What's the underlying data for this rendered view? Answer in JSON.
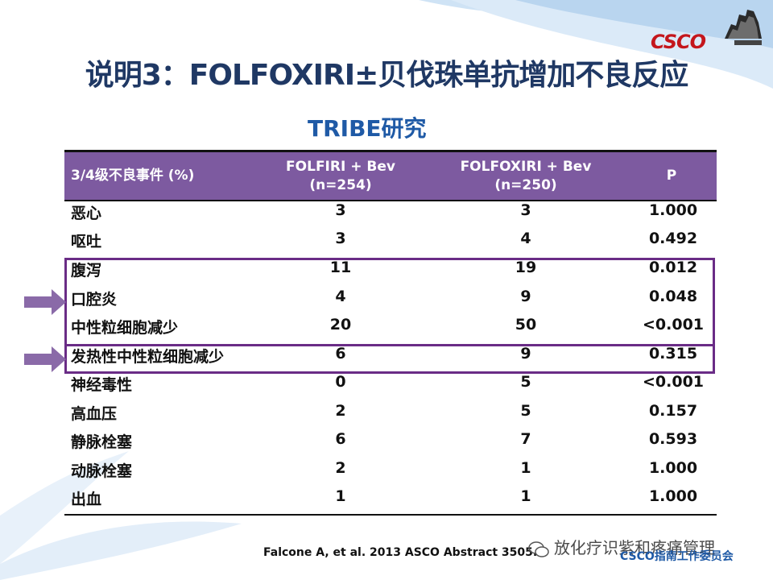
{
  "logo_text": "CSCO",
  "title": "说明3：FOLFOXIRI±贝伐珠单抗增加不良反应",
  "subtitle": "TRIBE研究",
  "table": {
    "headers": [
      {
        "line1": "3/4级不良事件 (%)",
        "line2": ""
      },
      {
        "line1": "FOLFIRI + Bev",
        "line2": "(n=254)"
      },
      {
        "line1": "FOLFOXIRI + Bev",
        "line2": "(n=250)"
      },
      {
        "line1": "P",
        "line2": ""
      }
    ],
    "rows": [
      [
        "恶心",
        "3",
        "3",
        "1.000"
      ],
      [
        "呕吐",
        "3",
        "4",
        "0.492"
      ],
      [
        "腹泻",
        "11",
        "19",
        "0.012"
      ],
      [
        "口腔炎",
        "4",
        "9",
        "0.048"
      ],
      [
        "中性粒细胞减少",
        "20",
        "50",
        "<0.001"
      ],
      [
        "发热性中性粒细胞减少",
        "6",
        "9",
        "0.315"
      ],
      [
        "神经毒性",
        "0",
        "5",
        "<0.001"
      ],
      [
        "高血压",
        "2",
        "5",
        "0.157"
      ],
      [
        "静脉栓塞",
        "6",
        "7",
        "0.593"
      ],
      [
        "动脉栓塞",
        "2",
        "1",
        "1.000"
      ],
      [
        "出血",
        "1",
        "1",
        "1.000"
      ]
    ]
  },
  "citation": "Falcone A, et al. 2013 ASCO  Abstract 3505.",
  "watermark": "放化疗识紫和疼痛管理",
  "footer_org": "CSCO指南工作委员会",
  "colors": {
    "title": "#1f3864",
    "subtitle": "#1f5aa6",
    "header_bg": "#7d5aa0",
    "highlight_border": "#6a2c86",
    "arrow": "#8a6aa8",
    "logo": "#c4161c"
  }
}
